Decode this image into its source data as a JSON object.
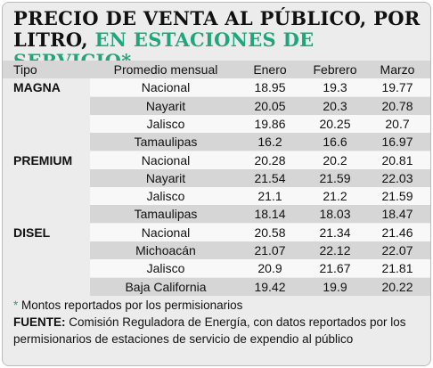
{
  "title": {
    "black": "PRECIO DE VENTA AL PÚBLICO, POR LITRO,",
    "green": "EN ESTACIONES DE SERVICIO*"
  },
  "table": {
    "header": [
      "Tipo",
      "Promedio mensual",
      "Enero",
      "Febrero",
      "Marzo"
    ],
    "groups": [
      {
        "tipo": "MAGNA",
        "rows": [
          [
            "Nacional",
            18.95,
            19.3,
            19.77
          ],
          [
            "Nayarit",
            20.05,
            20.3,
            20.78
          ],
          [
            "Jalisco",
            19.86,
            20.25,
            20.7
          ],
          [
            "Tamaulipas",
            16.2,
            16.6,
            16.97
          ]
        ]
      },
      {
        "tipo": "PREMIUM",
        "rows": [
          [
            "Nacional",
            20.28,
            20.2,
            20.81
          ],
          [
            "Nayarit",
            21.54,
            21.59,
            22.03
          ],
          [
            "Jalisco",
            21.1,
            21.2,
            21.59
          ],
          [
            "Tamaulipas",
            18.14,
            18.03,
            18.47
          ]
        ]
      },
      {
        "tipo": "DISEL",
        "rows": [
          [
            "Nacional",
            20.58,
            21.34,
            21.46
          ],
          [
            "Michoacán",
            21.07,
            22.12,
            22.07
          ],
          [
            "Jalisco",
            20.9,
            21.67,
            21.81
          ],
          [
            "Baja California",
            19.42,
            19.9,
            20.22
          ]
        ]
      }
    ]
  },
  "footnote": {
    "mark": "*",
    "text": "Montos reportados por los permisionarios"
  },
  "source": {
    "label": "FUENTE:",
    "text": "Comisión Reguladora de Energía, con datos reportados por los permisionarios de estaciones de servicio de expendio al público"
  }
}
